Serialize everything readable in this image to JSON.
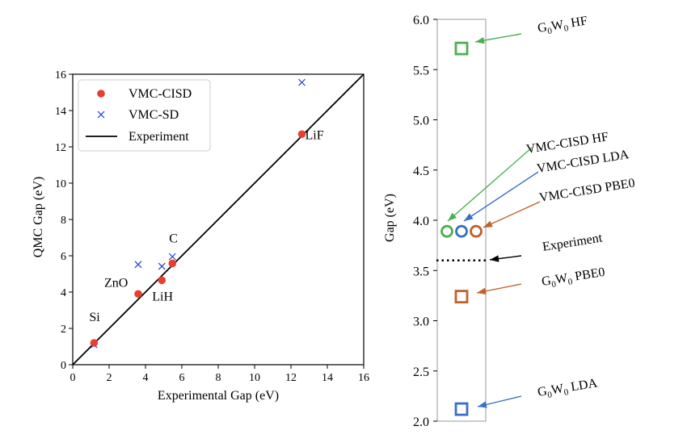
{
  "chart_data": [
    {
      "type": "scatter",
      "xlabel": "Experimental Gap (eV)",
      "ylabel": "QMC Gap (eV)",
      "xlim": [
        0,
        16
      ],
      "ylim": [
        0,
        16
      ],
      "xticks": [
        "0",
        "2",
        "4",
        "6",
        "8",
        "10",
        "12",
        "14",
        "16"
      ],
      "yticks": [
        "0",
        "2",
        "4",
        "6",
        "8",
        "10",
        "12",
        "14",
        "16"
      ],
      "grid": false,
      "legend_position": "top-left",
      "series": [
        {
          "name": "VMC-CISD",
          "marker": "filled-circle",
          "color": "#e8402e",
          "points": [
            {
              "x": 1.17,
              "y": 1.2
            },
            {
              "x": 3.6,
              "y": 3.9
            },
            {
              "x": 4.9,
              "y": 4.65
            },
            {
              "x": 5.48,
              "y": 5.58
            },
            {
              "x": 12.6,
              "y": 12.7
            }
          ]
        },
        {
          "name": "VMC-SD",
          "marker": "x",
          "color": "#1f3fd6",
          "points": [
            {
              "x": 1.17,
              "y": 1.1
            },
            {
              "x": 3.6,
              "y": 5.52
            },
            {
              "x": 4.9,
              "y": 5.42
            },
            {
              "x": 5.48,
              "y": 5.95
            },
            {
              "x": 12.6,
              "y": 15.55
            }
          ]
        },
        {
          "name": "Experiment",
          "marker": "line",
          "color": "#000000",
          "points": [
            {
              "x": 0,
              "y": 0
            },
            {
              "x": 16,
              "y": 16
            }
          ]
        }
      ],
      "point_labels": [
        {
          "text": "Si",
          "x": 1.17
        },
        {
          "text": "ZnO",
          "x": 3.6
        },
        {
          "text": "LiH",
          "x": 4.9
        },
        {
          "text": "C",
          "x": 5.48
        },
        {
          "text": "LiF",
          "x": 12.6
        }
      ]
    },
    {
      "type": "scatter",
      "ylabel": "Gap (eV)",
      "ylim": [
        2.0,
        6.0
      ],
      "yticks": [
        "2.0",
        "2.5",
        "3.0",
        "3.5",
        "4.0",
        "4.5",
        "5.0",
        "5.5",
        "6.0"
      ],
      "grid": false,
      "markers": [
        {
          "name": "G0W0 HF",
          "y": 5.71,
          "slot": 0,
          "shape": "square",
          "color": "#4caf50"
        },
        {
          "name": "VMC-CISD HF",
          "y": 3.89,
          "slot": -1,
          "shape": "circle",
          "color": "#4caf50"
        },
        {
          "name": "VMC-CISD LDA",
          "y": 3.89,
          "slot": 0,
          "shape": "circle",
          "color": "#3a6fc4"
        },
        {
          "name": "VMC-CISD PBE0",
          "y": 3.89,
          "slot": 1,
          "shape": "circle",
          "color": "#c0612b"
        },
        {
          "name": "G0W0 PBE0",
          "y": 3.24,
          "slot": 0,
          "shape": "square",
          "color": "#c0612b"
        },
        {
          "name": "G0W0 LDA",
          "y": 2.12,
          "slot": 0,
          "shape": "square",
          "color": "#3a6fc4"
        }
      ],
      "experiment": {
        "name": "Experiment",
        "y": 3.6,
        "style": "dotted",
        "color": "#000000"
      },
      "annotations": [
        {
          "id": "g0w0-hf",
          "base": "G",
          "sub1": "0",
          "mid": "W",
          "sub2": "0",
          "tail": " HF",
          "color": "#4caf50"
        },
        {
          "id": "vmc-cisd-hf",
          "text": "VMC-CISD HF",
          "color": "#4caf50"
        },
        {
          "id": "vmc-cisd-lda",
          "text": "VMC-CISD LDA",
          "color": "#3a6fc4"
        },
        {
          "id": "vmc-cisd-pbe0",
          "text": "VMC-CISD PBE0",
          "color": "#c0612b"
        },
        {
          "id": "experiment",
          "text": "Experiment",
          "color": "#000000"
        },
        {
          "id": "g0w0-pbe0",
          "base": "G",
          "sub1": "0",
          "mid": "W",
          "sub2": "0",
          "tail": " PBE0",
          "color": "#c0612b"
        },
        {
          "id": "g0w0-lda",
          "base": "G",
          "sub1": "0",
          "mid": "W",
          "sub2": "0",
          "tail": " LDA",
          "color": "#3a6fc4"
        }
      ]
    }
  ]
}
